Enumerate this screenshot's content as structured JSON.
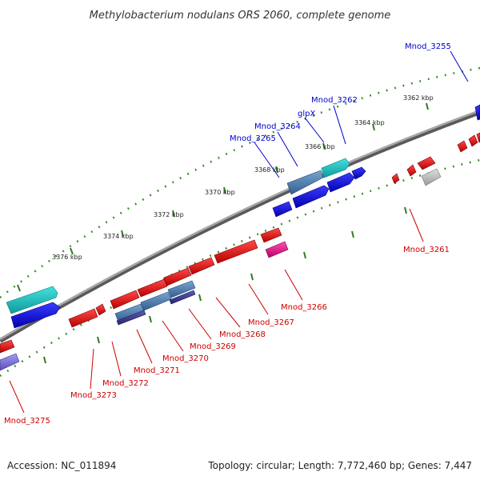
{
  "title": "Methylobacterium nodulans ORS 2060, complete genome",
  "accession": "Accession: NC_011894",
  "summary": "Topology: circular; Length: 7,772,460 bp; Genes: 7,447",
  "colors": {
    "backbone": "#8c8c8c",
    "tick_major": "#2e7d1f",
    "tick_minor": "#3a9a2a",
    "forward_label": "#0000cc",
    "reverse_label": "#cc0000"
  },
  "kbp_labels": [
    "3362 kbp",
    "3364 kbp",
    "3366 kbp",
    "3368 kbp",
    "3370 kbp",
    "3372 kbp",
    "3374 kbp",
    "3376 kbp"
  ],
  "gene_labels": [
    {
      "name": "Mnod_3255",
      "color": "#0000cc"
    },
    {
      "name": "Mnod_3262",
      "color": "#0000cc"
    },
    {
      "name": "glpX",
      "color": "#0000cc"
    },
    {
      "name": "Mnod_3264",
      "color": "#0000cc"
    },
    {
      "name": "Mnod_3265",
      "color": "#0000cc"
    },
    {
      "name": "Mnod_3261",
      "color": "#cc0000"
    },
    {
      "name": "Mnod_3266",
      "color": "#cc0000"
    },
    {
      "name": "Mnod_3267",
      "color": "#cc0000"
    },
    {
      "name": "Mnod_3268",
      "color": "#cc0000"
    },
    {
      "name": "Mnod_3269",
      "color": "#cc0000"
    },
    {
      "name": "Mnod_3270",
      "color": "#cc0000"
    },
    {
      "name": "Mnod_3271",
      "color": "#cc0000"
    },
    {
      "name": "Mnod_3272",
      "color": "#cc0000"
    },
    {
      "name": "Mnod_3273",
      "color": "#cc0000"
    },
    {
      "name": "Mnod_3275",
      "color": "#cc0000"
    }
  ],
  "feature_colors": {
    "cds_forward": "#0000e6",
    "cds_reverse": "#ee0000",
    "cyan": "#1cc4c4",
    "steel": "#4f7fb0",
    "navy": "#3a3a8f",
    "magenta": "#e0168c",
    "gray": "#b8b8b8",
    "lavender": "#7b6fd6"
  }
}
